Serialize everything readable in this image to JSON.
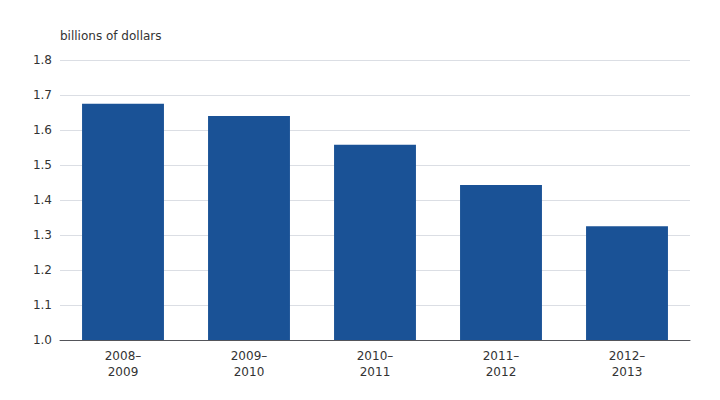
{
  "chart_data": {
    "type": "bar",
    "categories": [
      "2008–\n2009",
      "2009–\n2010",
      "2010–\n2011",
      "2011–\n2012",
      "2012–\n2013"
    ],
    "values": [
      1.675,
      1.64,
      1.558,
      1.443,
      1.325
    ],
    "ylabel": "billions of dollars",
    "color": "#1A5296",
    "ylim": [
      1.0,
      1.8
    ],
    "yticks": [
      {
        "value": 1.0,
        "label": "1.0"
      },
      1.1,
      1.2,
      1.3,
      1.4,
      1.5,
      1.6,
      1.7,
      1.8
    ],
    "grid": true
  }
}
